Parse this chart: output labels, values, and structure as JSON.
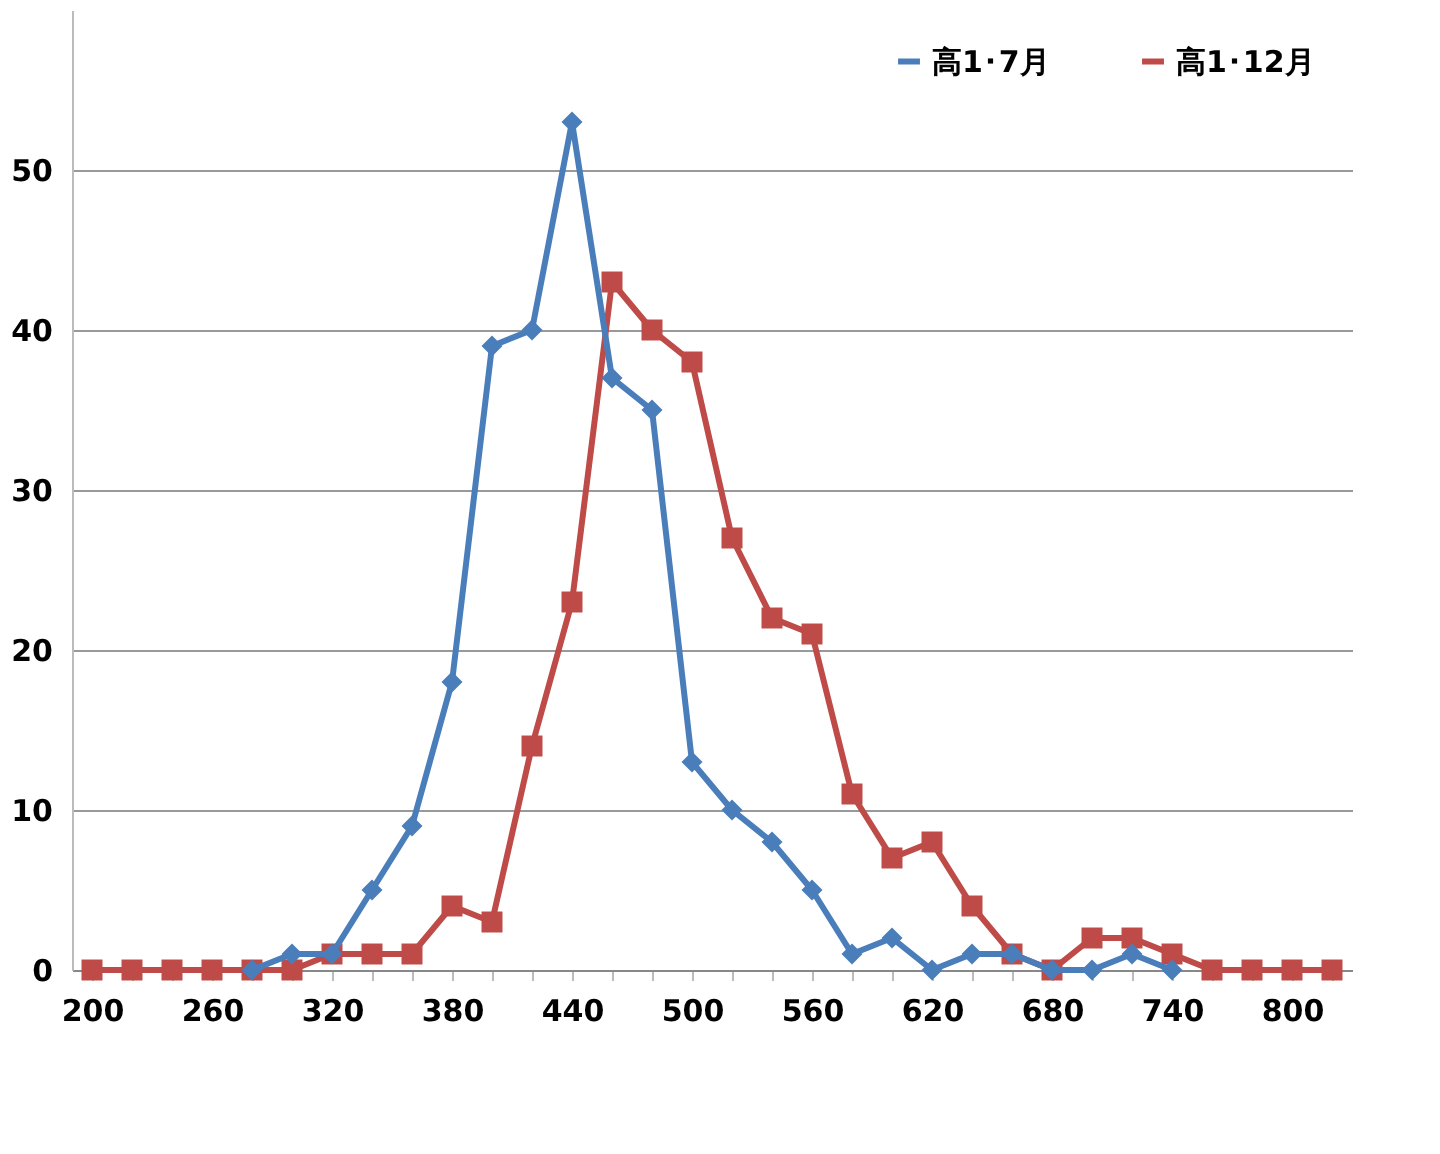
{
  "chart_data": {
    "type": "line",
    "categories": [
      "200",
      null,
      null,
      "260",
      null,
      null,
      "320",
      null,
      null,
      "380",
      null,
      null,
      "440",
      null,
      null,
      "500",
      null,
      null,
      "560",
      null,
      null,
      "620",
      null,
      null,
      "680",
      null,
      null,
      "740",
      null,
      null,
      "800",
      null
    ],
    "series": [
      {
        "name": "高1･7月",
        "color": "#4a7ebb",
        "marker": "diamond",
        "values": [
          null,
          null,
          null,
          null,
          0,
          1,
          1,
          5,
          9,
          18,
          39,
          40,
          53,
          37,
          35,
          13,
          10,
          8,
          5,
          1,
          2,
          0,
          1,
          1,
          0,
          0,
          1,
          0,
          null,
          null,
          null,
          null
        ]
      },
      {
        "name": "高1･12月",
        "color": "#be4b48",
        "marker": "square",
        "values": [
          0,
          0,
          0,
          0,
          0,
          0,
          1,
          1,
          1,
          4,
          3,
          14,
          23,
          43,
          40,
          38,
          27,
          22,
          21,
          11,
          7,
          8,
          4,
          1,
          0,
          2,
          2,
          1,
          0,
          0,
          0,
          0
        ]
      }
    ],
    "ylim": [
      0,
      60
    ],
    "yticks": [
      0,
      10,
      20,
      30,
      40,
      50
    ],
    "grid": "y",
    "legend": "top right"
  }
}
